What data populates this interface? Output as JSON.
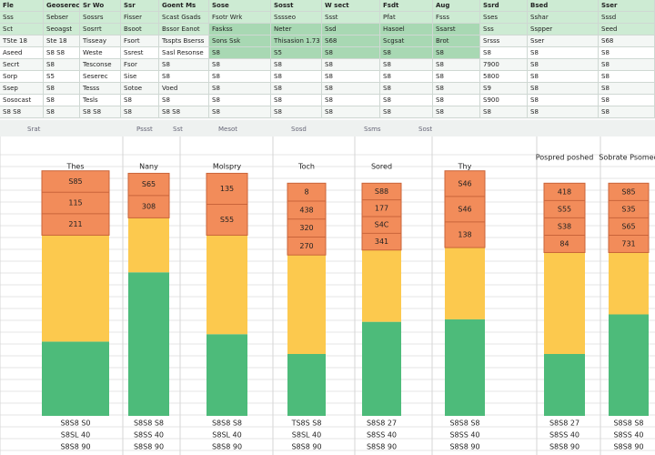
{
  "sheet": {
    "rows": [
      [
        "Fle",
        "Geoserech",
        "Sr Wo",
        "Ssr",
        "Goent Ms",
        "Sose",
        "Sosst",
        "W sect",
        "Fsdt",
        "Aug",
        "Ssrd",
        "Bsed",
        "Sser"
      ],
      [
        "Sss",
        "Sebser",
        "Sossrs",
        "Fisser",
        "Scast Gsads",
        "Fsotr Wrk",
        "Sssseo",
        "Ssst",
        "Pfat",
        "Fsss",
        "Sses",
        "Sshar",
        "Sssd"
      ],
      [
        "Sct",
        "Seoagst",
        "Sosrrt",
        "Bsoot",
        "Bssor Eanot",
        "Faskss",
        "Neter",
        "Ssd",
        "Hasoel",
        "Ssarst",
        "Sss",
        "Sspper",
        "Seed"
      ],
      [
        "TSte 18",
        "Ste 18",
        "Tisseay",
        "Fsort",
        "Tsspts Bserss",
        "Sons Ssk",
        "Thisasion 1.73",
        "S68",
        "Scgsat",
        "Brot",
        "Srsss",
        "Sser",
        "S68"
      ],
      [
        "Aseed",
        "S8 S8",
        "Weste",
        "Ssrest",
        "Sasl Resonse",
        "S8",
        "S5",
        "S8",
        "S8",
        "S8",
        "S8",
        "S8",
        "S8"
      ],
      [
        "Secrt",
        "S8",
        "Tesconse",
        "Fsor",
        "S8",
        "S8",
        "S8",
        "S8",
        "S8",
        "S8",
        "7900",
        "S8",
        "S8"
      ],
      [
        "Sorp",
        "S5",
        "Seserec",
        "Sise",
        "S8",
        "S8",
        "S8",
        "S8",
        "S8",
        "S8",
        "5800",
        "S8",
        "S8"
      ],
      [
        "Ssep",
        "S8",
        "Tesss",
        "Sotoe",
        "Voed",
        "S8",
        "S8",
        "S8",
        "S8",
        "S8",
        "S9",
        "S8",
        "S8"
      ],
      [
        "Sosocast",
        "S8",
        "Tesls",
        "S8",
        "S8",
        "S8",
        "S8",
        "S8",
        "S8",
        "S8",
        "S900",
        "S8",
        "S8"
      ],
      [
        "S8 S8",
        "S8",
        "S8 S8",
        "S8",
        "S8 S8",
        "S8",
        "S8",
        "S8",
        "S8",
        "S8",
        "S8",
        "S8",
        "S8"
      ]
    ],
    "toolbar": [
      "Srat",
      "Pssst",
      "Sst",
      "Mesot",
      "Sosd",
      "Ssms",
      "Sost"
    ]
  },
  "chart_data": {
    "type": "bar",
    "stacked": true,
    "categories": [
      "Thes",
      "Nany",
      "Molspry",
      "Toch",
      "Sored",
      "Thy",
      "Pospred poshed",
      "Sobrate Psomed"
    ],
    "series": [
      {
        "color": "#4dbb7a",
        "values": [
          30,
          58,
          33,
          25,
          38,
          39,
          25,
          41
        ]
      },
      {
        "color": "#fcc94e",
        "values": [
          43,
          22,
          40,
          40,
          29,
          29,
          41,
          25
        ]
      },
      {
        "color": "#f28c5a",
        "values": [
          26,
          18,
          25,
          29,
          27,
          31,
          28,
          28
        ]
      }
    ],
    "segment_labels": [
      [
        "S85",
        "115",
        "211"
      ],
      [
        "S65",
        "308"
      ],
      [
        "135",
        "S55"
      ],
      [
        "8",
        "438",
        "320",
        "270"
      ],
      [
        "S88",
        "177",
        "S4C",
        "341"
      ],
      [
        "S46",
        "S46",
        "138"
      ],
      [
        "418",
        "S55",
        "S38",
        "84"
      ],
      [
        "S85",
        "S35",
        "S65",
        "731"
      ]
    ],
    "footer_labels": [
      [
        "S8S8 S0",
        "S8SL 40",
        "S8S8 90"
      ],
      [
        "S8S8 S8",
        "S8SS 40",
        "S8S8 90"
      ],
      [
        "S8S8 S8",
        "S8SL 40",
        "S8S8 90"
      ],
      [
        "TS8S S8",
        "S8SL 40",
        "S8S8 90"
      ],
      [
        "S8S8 27",
        "S8SS 40",
        "S8S8 90"
      ],
      [
        "S8S8 S8",
        "S8SS 40",
        "S8S8 90"
      ],
      [
        "S8S8 27",
        "S8SS 40",
        "S8S8 90"
      ],
      [
        "S8S8 S8",
        "S8SS 40",
        "S8S8 90"
      ]
    ],
    "ylim": [
      0,
      100
    ]
  }
}
